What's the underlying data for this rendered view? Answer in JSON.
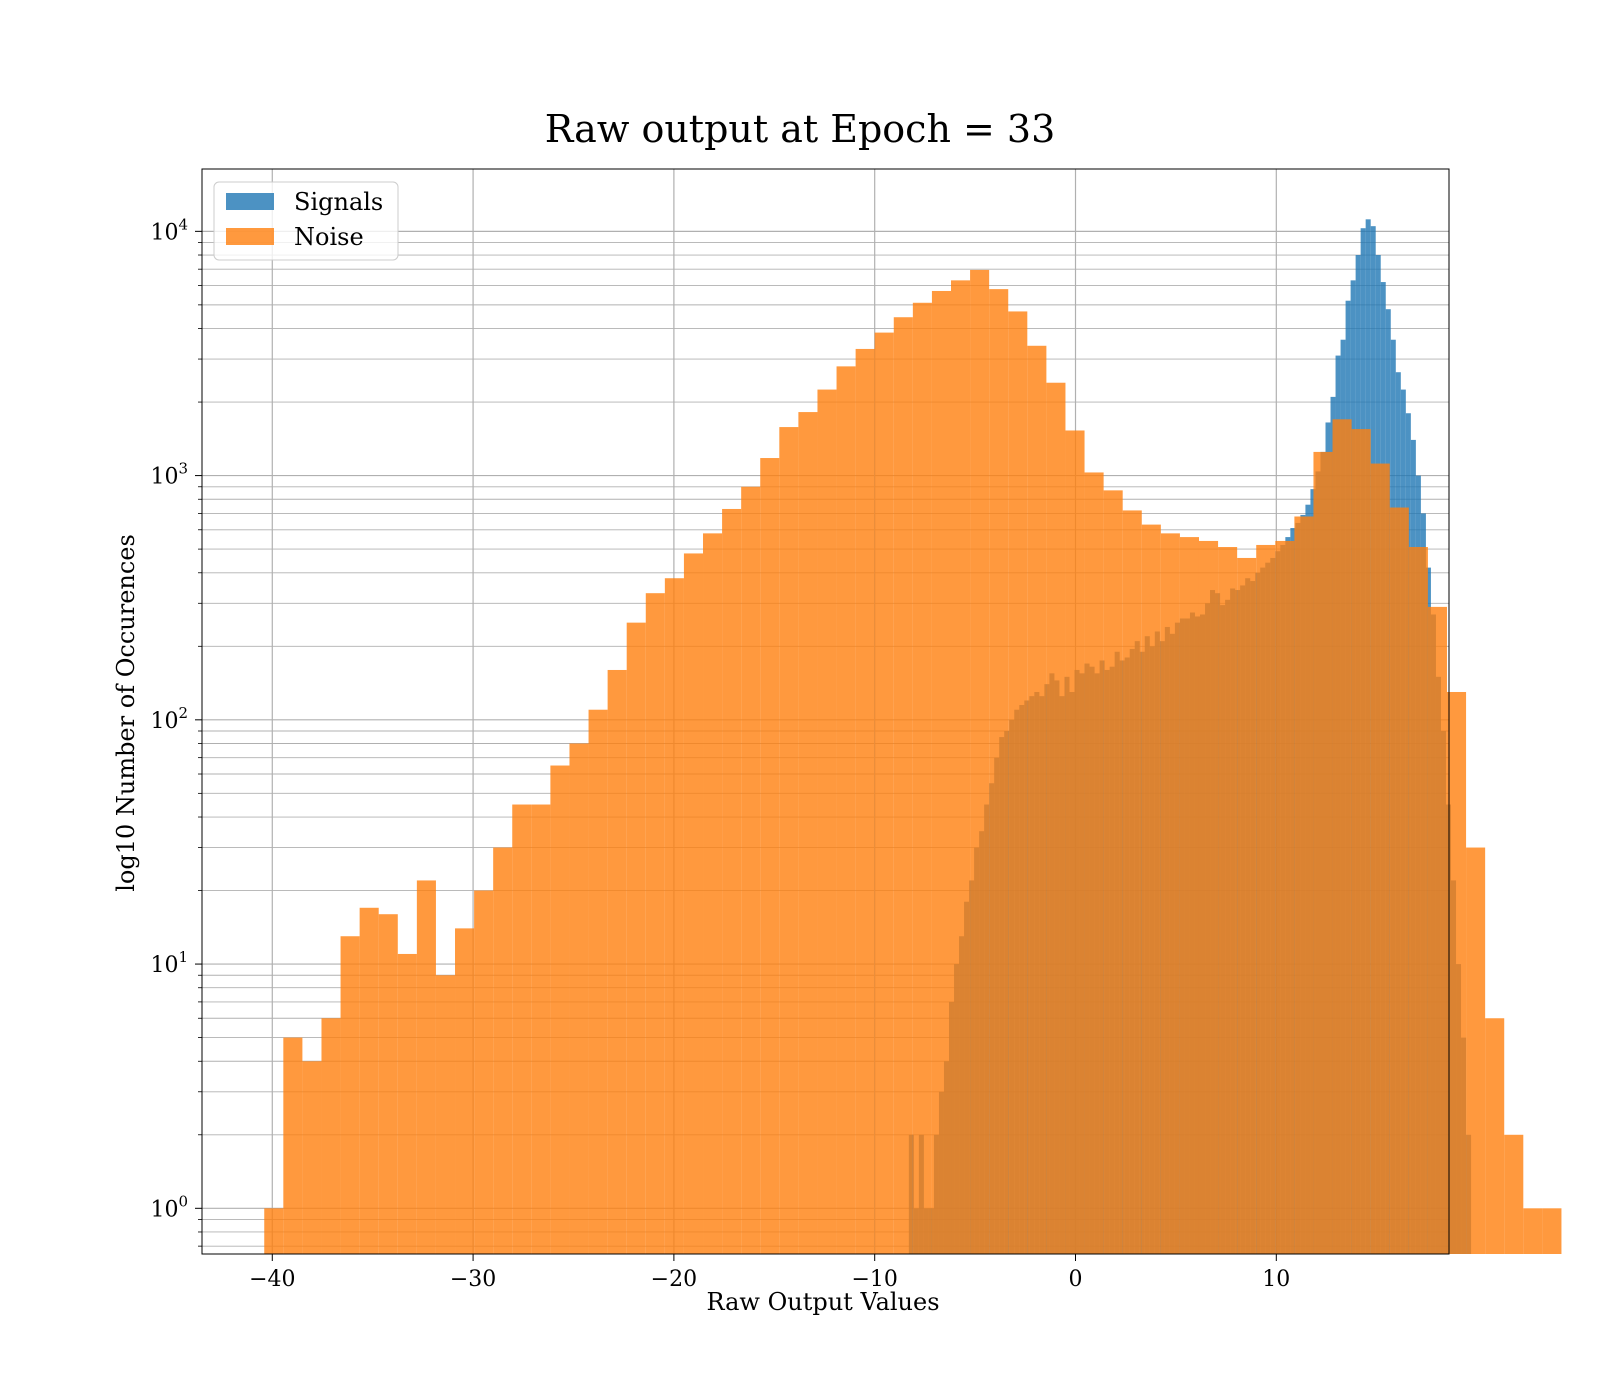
{
  "chart_data": {
    "type": "bar",
    "title": "Raw output at Epoch = 33",
    "xlabel": "Raw Output Values",
    "ylabel": "log10 Number of Occurences",
    "x_ticks": [
      -40,
      -30,
      -20,
      -10,
      0,
      10
    ],
    "x_tick_labels": [
      "−40",
      "−30",
      "−20",
      "−10",
      "0",
      "10"
    ],
    "y_scale": "log",
    "y_ticks": [
      1,
      10,
      100,
      1000,
      10000
    ],
    "y_tick_base": "10",
    "y_tick_exponents": [
      "0",
      "1",
      "2",
      "3",
      "4"
    ],
    "xlim": [
      -43.5,
      18.6
    ],
    "ylim": [
      0.65,
      18000
    ],
    "grid": true,
    "legend_position": "upper-left",
    "series": [
      {
        "name": "Signals",
        "color": "#1f77b4",
        "bin_start": -8.3,
        "bin_width": 0.25,
        "counts": [
          2,
          1,
          2,
          1,
          1,
          2,
          3,
          4,
          7,
          10,
          13,
          18,
          22,
          30,
          35,
          45,
          55,
          70,
          85,
          90,
          100,
          110,
          115,
          120,
          125,
          130,
          125,
          140,
          155,
          145,
          125,
          150,
          130,
          160,
          155,
          170,
          165,
          155,
          175,
          160,
          165,
          190,
          175,
          180,
          195,
          210,
          190,
          220,
          200,
          230,
          210,
          240,
          225,
          250,
          260,
          260,
          275,
          265,
          270,
          300,
          340,
          330,
          295,
          310,
          345,
          340,
          355,
          380,
          370,
          400,
          420,
          440,
          460,
          490,
          520,
          560,
          610,
          640,
          690,
          760,
          880,
          1040,
          1250,
          1650,
          2100,
          3100,
          3600,
          5200,
          6300,
          8000,
          10300,
          11200,
          10500,
          8000,
          6200,
          4800,
          3600,
          2650,
          2250,
          1800,
          1400,
          1000,
          700,
          420,
          270,
          150,
          90,
          45,
          22,
          10,
          5,
          2
        ]
      },
      {
        "name": "Noise",
        "color": "#ff7f0e",
        "bin_start": -40.4,
        "bin_width": 0.95,
        "counts": [
          1,
          5,
          4,
          6,
          13,
          17,
          16,
          11,
          22,
          9,
          14,
          20,
          30,
          45,
          45,
          65,
          80,
          110,
          160,
          250,
          330,
          380,
          480,
          580,
          730,
          900,
          1180,
          1580,
          1820,
          2250,
          2800,
          3300,
          3850,
          4450,
          5100,
          5700,
          6300,
          6950,
          5800,
          4700,
          3400,
          2400,
          1530,
          1030,
          870,
          720,
          630,
          580,
          560,
          540,
          510,
          460,
          520,
          540,
          680,
          1250,
          1700,
          1550,
          1120,
          740,
          510,
          290,
          130,
          30,
          6,
          2,
          1,
          1
        ]
      }
    ]
  }
}
